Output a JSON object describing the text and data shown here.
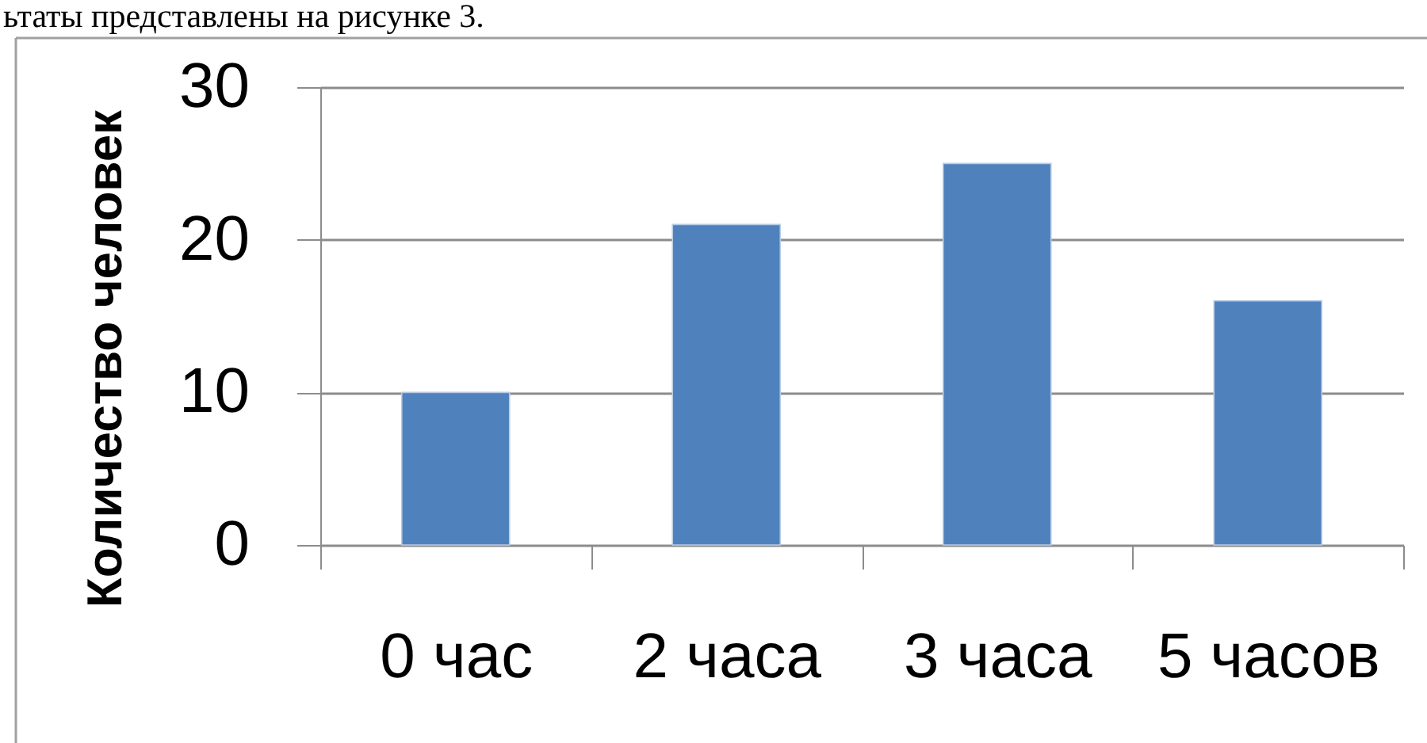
{
  "chart_data": {
    "type": "bar",
    "ylabel": "Количество человек",
    "categories": [
      "0 час",
      "2 часа",
      "3 часа",
      "5 часов"
    ],
    "values": [
      10,
      21,
      25,
      16
    ],
    "color": "#4f81bd",
    "ylim": [
      0,
      30
    ],
    "yticks": [
      0,
      10,
      20,
      30
    ],
    "grid": "y",
    "annotations": [
      "ьтаты представлены на рисунке 3."
    ]
  }
}
